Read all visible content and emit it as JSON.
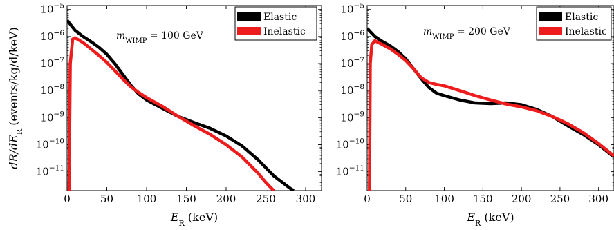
{
  "chart_data": [
    {
      "type": "line",
      "annotation": "m_WIMP = 100 GeV",
      "xlabel": "E_R (keV)",
      "ylabel": "dR/dE_R (events/kg/d/keV)",
      "y_scale": "log",
      "xlim": [
        0,
        320
      ],
      "ylim": [
        2e-12,
        1.4e-05
      ],
      "x_ticks": [
        0,
        50,
        100,
        150,
        200,
        250,
        300
      ],
      "y_ticks": [
        1e-11,
        1e-10,
        1e-09,
        1e-08,
        1e-07,
        1e-06,
        1e-05
      ],
      "y_tick_labels": [
        {
          "base": "10",
          "exp": "−11"
        },
        {
          "base": "10",
          "exp": "−10"
        },
        {
          "base": "10",
          "exp": "−9"
        },
        {
          "base": "10",
          "exp": "−8"
        },
        {
          "base": "10",
          "exp": "−7"
        },
        {
          "base": "10",
          "exp": "−6"
        },
        {
          "base": "10",
          "exp": "−5"
        }
      ],
      "grid": false,
      "legend_position": "top-right",
      "series": [
        {
          "name": "Elastic",
          "color": "#000000",
          "x": [
            0,
            10,
            20,
            30,
            40,
            50,
            60,
            70,
            80,
            90,
            100,
            120,
            140,
            160,
            180,
            200,
            220,
            240,
            260,
            280,
            285
          ],
          "y": [
            4e-06,
            1.7e-06,
            1e-06,
            6.5e-07,
            4e-07,
            2.2e-07,
            1e-07,
            4e-08,
            1.6e-08,
            7.5e-09,
            4.5e-09,
            2.2e-09,
            1.1e-09,
            6.5e-10,
            4e-10,
            2.1e-10,
            9e-11,
            2.8e-11,
            7e-12,
            2.5e-12,
            2e-12
          ]
        },
        {
          "name": "Inelastic",
          "color": "#ee1c1c",
          "x": [
            2.5,
            4,
            7,
            10,
            20,
            30,
            40,
            50,
            60,
            70,
            80,
            90,
            100,
            120,
            140,
            160,
            180,
            200,
            220,
            240,
            250,
            255,
            260
          ],
          "y": [
            2e-12,
            1e-07,
            8e-07,
            9e-07,
            6e-07,
            3.5e-07,
            2e-07,
            1.1e-07,
            5.5e-08,
            2.7e-08,
            1.4e-08,
            8.5e-09,
            5.5e-09,
            2.6e-09,
            1.1e-09,
            5e-10,
            2.4e-10,
            1e-10,
            3.5e-11,
            9e-12,
            4e-12,
            2.8e-12,
            2e-12
          ]
        }
      ]
    },
    {
      "type": "line",
      "annotation": "m_WIMP = 200 GeV",
      "xlabel": "E_R (keV)",
      "ylabel": "",
      "y_scale": "log",
      "xlim": [
        0,
        320
      ],
      "ylim": [
        2e-12,
        1.4e-05
      ],
      "x_ticks": [
        0,
        50,
        100,
        150,
        200,
        250,
        300
      ],
      "y_ticks": [
        1e-11,
        1e-10,
        1e-09,
        1e-08,
        1e-07,
        1e-06,
        1e-05
      ],
      "y_tick_labels": [
        {
          "base": "10",
          "exp": "−11"
        },
        {
          "base": "10",
          "exp": "−10"
        },
        {
          "base": "10",
          "exp": "−9"
        },
        {
          "base": "10",
          "exp": "−8"
        },
        {
          "base": "10",
          "exp": "−7"
        },
        {
          "base": "10",
          "exp": "−6"
        },
        {
          "base": "10",
          "exp": "−5"
        }
      ],
      "grid": false,
      "legend_position": "top-right",
      "series": [
        {
          "name": "Elastic",
          "color": "#000000",
          "x": [
            0,
            10,
            20,
            30,
            40,
            50,
            60,
            70,
            80,
            90,
            100,
            120,
            140,
            160,
            180,
            200,
            220,
            240,
            260,
            280,
            300,
            320
          ],
          "y": [
            2e-06,
            1e-06,
            6.5e-07,
            4.5e-07,
            2.8e-07,
            1.5e-07,
            6.5e-08,
            2.8e-08,
            1.3e-08,
            8e-09,
            6.5e-09,
            4.5e-09,
            3.5e-09,
            3.3e-09,
            3.5e-09,
            3e-09,
            2e-09,
            1.1e-09,
            5e-10,
            2.4e-10,
            1e-10,
            3.5e-11
          ]
        },
        {
          "name": "Inelastic",
          "color": "#ee1c1c",
          "x": [
            3,
            4,
            6,
            10,
            20,
            30,
            40,
            50,
            60,
            70,
            80,
            90,
            100,
            120,
            140,
            160,
            180,
            200,
            220,
            240,
            260,
            280,
            300,
            320
          ],
          "y": [
            2e-12,
            1e-07,
            5e-07,
            7e-07,
            5e-07,
            3.5e-07,
            2.2e-07,
            1.3e-07,
            6.5e-08,
            3e-08,
            2e-08,
            1.7e-08,
            1.5e-08,
            1e-08,
            6.5e-09,
            4.5e-09,
            3.2e-09,
            2.5e-09,
            1.8e-09,
            1.1e-09,
            6e-10,
            2.8e-10,
            1.1e-10,
            3.8e-11
          ]
        }
      ]
    }
  ]
}
